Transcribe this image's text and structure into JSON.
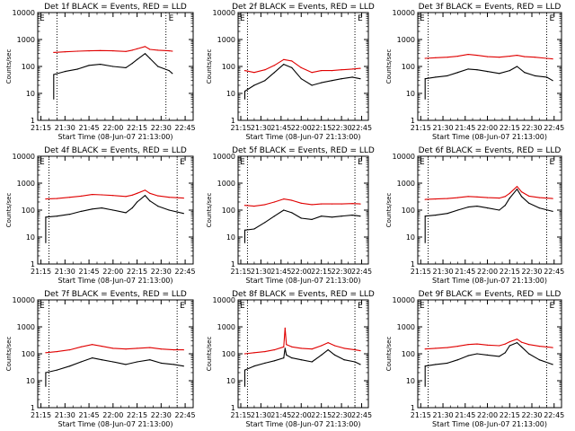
{
  "figure": {
    "xlabel": "Start Time (08-Jun-07 21:13:00)",
    "ylabel": "Counts/sec",
    "x_tick_labels": [
      "21:15",
      "21:30",
      "21:45",
      "22:00",
      "22:15",
      "22:30",
      "22:45"
    ],
    "y_tick_labels": [
      "1",
      "10",
      "100",
      "1000",
      "10000"
    ],
    "corner_labels": [
      "E",
      "E"
    ]
  },
  "colors": {
    "events": "#000000",
    "lld": "#e00000",
    "axes": "#000000",
    "background": "#ffffff"
  },
  "chart_data": [
    {
      "type": "line",
      "title": "Det 1f BLACK = Events, RED = LLD",
      "xlabel": "Start Time (08-Jun-07 21:13:00)",
      "ylabel": "Counts/sec",
      "x_range": [
        "21:13",
        "22:50"
      ],
      "ylim": [
        1,
        10000
      ],
      "y_scale": "log",
      "grid": false,
      "x": [
        "21:23",
        "21:30",
        "21:38",
        "21:45",
        "21:52",
        "22:00",
        "22:08",
        "22:12",
        "22:15",
        "22:20",
        "22:23",
        "22:28",
        "22:35",
        "22:37"
      ],
      "series": [
        {
          "name": "Events",
          "values": [
            50,
            65,
            80,
            110,
            120,
            100,
            90,
            130,
            180,
            300,
            200,
            100,
            70,
            55
          ]
        },
        {
          "name": "LLD",
          "values": [
            330,
            350,
            370,
            380,
            390,
            380,
            360,
            400,
            450,
            550,
            430,
            400,
            380,
            370
          ]
        }
      ]
    },
    {
      "type": "line",
      "title": "Det 2f BLACK = Events, RED = LLD",
      "xlabel": "Start Time (08-Jun-07 21:13:00)",
      "ylabel": "Counts/sec",
      "x_range": [
        "21:13",
        "22:50"
      ],
      "ylim": [
        1,
        10000
      ],
      "y_scale": "log",
      "grid": false,
      "x": [
        "21:18",
        "21:25",
        "21:33",
        "21:40",
        "21:47",
        "21:53",
        "22:00",
        "22:08",
        "22:15",
        "22:23",
        "22:30",
        "22:38",
        "22:44"
      ],
      "series": [
        {
          "name": "Events",
          "values": [
            12,
            20,
            30,
            60,
            120,
            90,
            35,
            20,
            25,
            30,
            35,
            40,
            35
          ]
        },
        {
          "name": "LLD",
          "values": [
            70,
            60,
            75,
            110,
            180,
            160,
            90,
            60,
            70,
            70,
            75,
            80,
            85
          ]
        }
      ]
    },
    {
      "type": "line",
      "title": "Det 3f BLACK = Events, RED = LLD",
      "xlabel": "Start Time (08-Jun-07 21:13:00)",
      "ylabel": "Counts/sec",
      "x_range": [
        "21:13",
        "22:50"
      ],
      "ylim": [
        1,
        10000
      ],
      "y_scale": "log",
      "grid": false,
      "x": [
        "21:18",
        "21:25",
        "21:33",
        "21:40",
        "21:47",
        "21:53",
        "22:00",
        "22:08",
        "22:15",
        "22:20",
        "22:25",
        "22:32",
        "22:40",
        "22:44"
      ],
      "series": [
        {
          "name": "Events",
          "values": [
            35,
            40,
            45,
            60,
            80,
            75,
            65,
            55,
            70,
            100,
            60,
            45,
            40,
            30
          ]
        },
        {
          "name": "LLD",
          "values": [
            200,
            210,
            220,
            240,
            280,
            260,
            230,
            220,
            240,
            260,
            230,
            220,
            200,
            190
          ]
        }
      ]
    },
    {
      "type": "line",
      "title": "Det 4f BLACK = Events, RED = LLD",
      "xlabel": "Start Time (08-Jun-07 21:13:00)",
      "ylabel": "Counts/sec",
      "x_range": [
        "21:13",
        "22:50"
      ],
      "ylim": [
        1,
        10000
      ],
      "y_scale": "log",
      "grid": false,
      "x": [
        "21:18",
        "21:25",
        "21:33",
        "21:40",
        "21:47",
        "21:53",
        "22:00",
        "22:08",
        "22:12",
        "22:15",
        "22:20",
        "22:23",
        "22:28",
        "22:35",
        "22:44"
      ],
      "series": [
        {
          "name": "Events",
          "values": [
            55,
            60,
            70,
            90,
            110,
            120,
            100,
            80,
            120,
            200,
            350,
            220,
            140,
            100,
            75
          ]
        },
        {
          "name": "LLD",
          "values": [
            260,
            270,
            300,
            330,
            380,
            370,
            350,
            320,
            360,
            420,
            550,
            420,
            340,
            300,
            280
          ]
        }
      ]
    },
    {
      "type": "line",
      "title": "Det 5f BLACK = Events, RED = LLD",
      "xlabel": "Start Time (08-Jun-07 21:13:00)",
      "ylabel": "Counts/sec",
      "x_range": [
        "21:13",
        "22:50"
      ],
      "ylim": [
        1,
        10000
      ],
      "y_scale": "log",
      "grid": false,
      "x": [
        "21:18",
        "21:25",
        "21:33",
        "21:40",
        "21:47",
        "21:53",
        "22:00",
        "22:08",
        "22:15",
        "22:23",
        "22:30",
        "22:38",
        "22:44"
      ],
      "series": [
        {
          "name": "Events",
          "values": [
            18,
            20,
            35,
            60,
            100,
            80,
            50,
            45,
            60,
            55,
            60,
            65,
            60
          ]
        },
        {
          "name": "LLD",
          "values": [
            150,
            140,
            160,
            200,
            260,
            230,
            180,
            160,
            170,
            170,
            170,
            175,
            170
          ]
        }
      ]
    },
    {
      "type": "line",
      "title": "Det 6f BLACK = Events, RED = LLD",
      "xlabel": "Start Time (08-Jun-07 21:13:00)",
      "ylabel": "Counts/sec",
      "x_range": [
        "21:13",
        "22:50"
      ],
      "ylim": [
        1,
        10000
      ],
      "y_scale": "log",
      "grid": false,
      "x": [
        "21:18",
        "21:25",
        "21:33",
        "21:40",
        "21:47",
        "21:53",
        "22:00",
        "22:08",
        "22:12",
        "22:15",
        "22:20",
        "22:23",
        "22:28",
        "22:35",
        "22:44"
      ],
      "series": [
        {
          "name": "Events",
          "values": [
            60,
            65,
            75,
            100,
            130,
            140,
            120,
            100,
            150,
            280,
            600,
            320,
            180,
            120,
            90
          ]
        },
        {
          "name": "LLD",
          "values": [
            250,
            260,
            270,
            290,
            320,
            310,
            290,
            280,
            320,
            420,
            750,
            480,
            330,
            290,
            270
          ]
        }
      ]
    },
    {
      "type": "line",
      "title": "Det 7f BLACK = Events, RED = LLD",
      "xlabel": "Start Time (08-Jun-07 21:13:00)",
      "ylabel": "Counts/sec",
      "x_range": [
        "21:13",
        "22:50"
      ],
      "ylim": [
        1,
        10000
      ],
      "y_scale": "log",
      "grid": false,
      "x": [
        "21:18",
        "21:25",
        "21:33",
        "21:40",
        "21:47",
        "21:53",
        "22:00",
        "22:08",
        "22:15",
        "22:23",
        "22:30",
        "22:38",
        "22:44"
      ],
      "series": [
        {
          "name": "Events",
          "values": [
            20,
            25,
            35,
            50,
            70,
            60,
            50,
            40,
            50,
            60,
            45,
            40,
            35
          ]
        },
        {
          "name": "LLD",
          "values": [
            110,
            120,
            140,
            180,
            220,
            190,
            160,
            150,
            160,
            170,
            150,
            140,
            140
          ]
        }
      ]
    },
    {
      "type": "line",
      "title": "Det 8f BLACK = Events, RED = LLD",
      "xlabel": "Start Time (08-Jun-07 21:13:00)",
      "ylabel": "Counts/sec",
      "x_range": [
        "21:13",
        "22:50"
      ],
      "ylim": [
        1,
        10000
      ],
      "y_scale": "log",
      "grid": false,
      "x": [
        "21:18",
        "21:25",
        "21:33",
        "21:40",
        "21:47",
        "21:48",
        "21:49",
        "21:53",
        "22:00",
        "22:08",
        "22:15",
        "22:20",
        "22:25",
        "22:32",
        "22:40",
        "22:44"
      ],
      "series": [
        {
          "name": "Events",
          "values": [
            25,
            35,
            45,
            55,
            70,
            160,
            90,
            70,
            60,
            50,
            90,
            140,
            90,
            60,
            50,
            40
          ]
        },
        {
          "name": "LLD",
          "values": [
            100,
            110,
            120,
            140,
            180,
            900,
            220,
            180,
            160,
            150,
            200,
            260,
            200,
            160,
            140,
            130
          ]
        }
      ]
    },
    {
      "type": "line",
      "title": "Det 9f BLACK = Events, RED = LLD",
      "xlabel": "Start Time (08-Jun-07 21:13:00)",
      "ylabel": "Counts/sec",
      "x_range": [
        "21:13",
        "22:50"
      ],
      "ylim": [
        1,
        10000
      ],
      "y_scale": "log",
      "grid": false,
      "x": [
        "21:18",
        "21:25",
        "21:33",
        "21:40",
        "21:47",
        "21:53",
        "22:00",
        "22:08",
        "22:12",
        "22:15",
        "22:20",
        "22:23",
        "22:28",
        "22:35",
        "22:44"
      ],
      "series": [
        {
          "name": "Events",
          "values": [
            35,
            40,
            45,
            60,
            85,
            100,
            90,
            80,
            110,
            200,
            260,
            180,
            100,
            60,
            40
          ]
        },
        {
          "name": "LLD",
          "values": [
            150,
            160,
            170,
            190,
            220,
            230,
            210,
            200,
            230,
            280,
            350,
            270,
            220,
            190,
            170
          ]
        }
      ]
    }
  ]
}
